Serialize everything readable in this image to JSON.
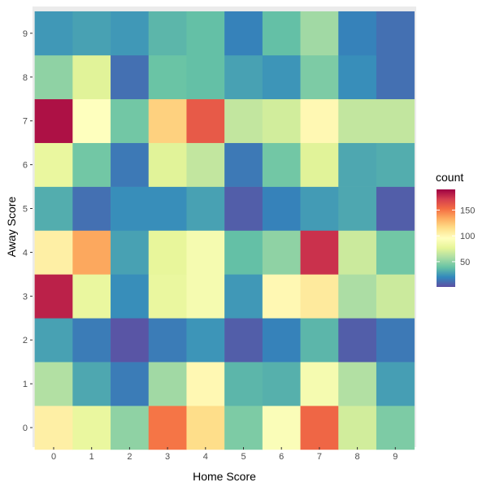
{
  "chart_data": {
    "type": "heatmap",
    "title": "",
    "xlabel": "Home Score",
    "ylabel": "Away Score",
    "x_categories": [
      "0",
      "1",
      "2",
      "3",
      "4",
      "5",
      "6",
      "7",
      "8",
      "9"
    ],
    "y_categories": [
      "0",
      "1",
      "2",
      "3",
      "4",
      "5",
      "6",
      "7",
      "8",
      "9"
    ],
    "legend": {
      "title": "count",
      "ticks": [
        50,
        100,
        150
      ],
      "range": [
        1,
        190
      ],
      "placement": "right"
    },
    "palette": [
      "#5E4FA2",
      "#3288BD",
      "#66C2A5",
      "#ABDDA4",
      "#E6F598",
      "#FFFFBF",
      "#FEE08B",
      "#FDAE61",
      "#F46D43",
      "#D53E4F",
      "#9E0142"
    ],
    "values_by_away_score": [
      [
        105,
        80,
        50,
        150,
        115,
        45,
        92,
        155,
        70,
        45
      ],
      [
        60,
        30,
        16,
        55,
        100,
        35,
        33,
        88,
        60,
        27
      ],
      [
        28,
        16,
        3,
        16,
        24,
        6,
        18,
        35,
        6,
        15
      ],
      [
        180,
        80,
        22,
        80,
        88,
        25,
        100,
        108,
        58,
        68
      ],
      [
        105,
        135,
        28,
        78,
        88,
        38,
        50,
        175,
        68,
        42
      ],
      [
        32,
        12,
        22,
        22,
        28,
        6,
        18,
        26,
        30,
        6
      ],
      [
        80,
        42,
        15,
        75,
        65,
        15,
        42,
        75,
        30,
        32
      ],
      [
        185,
        95,
        42,
        120,
        160,
        65,
        70,
        100,
        65,
        65
      ],
      [
        50,
        75,
        12,
        40,
        38,
        28,
        24,
        45,
        22,
        12
      ],
      [
        25,
        28,
        25,
        35,
        38,
        18,
        38,
        55,
        18,
        12
      ]
    ]
  }
}
